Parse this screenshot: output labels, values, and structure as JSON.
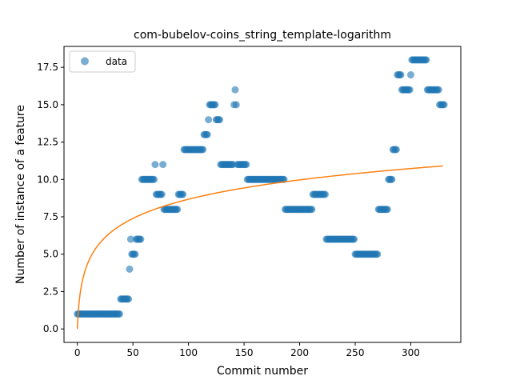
{
  "chart_data": {
    "type": "scatter",
    "title": "com-bubelov-coins_string_template-logarithm",
    "xlabel": "Commit number",
    "ylabel": "Number of instance of a feature",
    "xlim": [
      -12,
      345
    ],
    "ylim": [
      -0.9,
      18.9
    ],
    "xticks": [
      0,
      50,
      100,
      150,
      200,
      250,
      300
    ],
    "yticks": [
      0.0,
      2.5,
      5.0,
      7.5,
      10.0,
      12.5,
      15.0,
      17.5
    ],
    "xtick_labels": [
      "0",
      "50",
      "100",
      "150",
      "200",
      "250",
      "300"
    ],
    "ytick_labels": [
      "0.0",
      "2.5",
      "5.0",
      "7.5",
      "10.0",
      "12.5",
      "15.0",
      "17.5"
    ],
    "grid": false,
    "legend": {
      "position": "top-left",
      "entries": [
        "data"
      ]
    },
    "colors": {
      "data": "#1f77b4",
      "fit": "#ff7f0e"
    },
    "series": [
      {
        "name": "data",
        "points": [
          [
            0,
            1
          ],
          [
            1,
            1
          ],
          [
            2,
            1
          ],
          [
            3,
            1
          ],
          [
            4,
            1
          ],
          [
            5,
            1
          ],
          [
            6,
            1
          ],
          [
            7,
            1
          ],
          [
            8,
            1
          ],
          [
            9,
            1
          ],
          [
            10,
            1
          ],
          [
            11,
            1
          ],
          [
            12,
            1
          ],
          [
            13,
            1
          ],
          [
            14,
            1
          ],
          [
            15,
            1
          ],
          [
            16,
            1
          ],
          [
            17,
            1
          ],
          [
            18,
            1
          ],
          [
            19,
            1
          ],
          [
            20,
            1
          ],
          [
            21,
            1
          ],
          [
            22,
            1
          ],
          [
            23,
            1
          ],
          [
            24,
            1
          ],
          [
            25,
            1
          ],
          [
            26,
            1
          ],
          [
            27,
            1
          ],
          [
            28,
            1
          ],
          [
            29,
            1
          ],
          [
            30,
            1
          ],
          [
            31,
            1
          ],
          [
            32,
            1
          ],
          [
            33,
            1
          ],
          [
            34,
            1
          ],
          [
            35,
            1
          ],
          [
            36,
            1
          ],
          [
            37,
            1
          ],
          [
            38,
            1
          ],
          [
            39,
            2
          ],
          [
            40,
            2
          ],
          [
            41,
            2
          ],
          [
            42,
            2
          ],
          [
            43,
            2
          ],
          [
            44,
            2
          ],
          [
            45,
            2
          ],
          [
            46,
            2
          ],
          [
            47,
            4
          ],
          [
            48,
            6
          ],
          [
            49,
            5
          ],
          [
            50,
            5
          ],
          [
            51,
            5
          ],
          [
            52,
            5
          ],
          [
            53,
            6
          ],
          [
            54,
            6
          ],
          [
            55,
            6
          ],
          [
            56,
            6
          ],
          [
            57,
            6
          ],
          [
            58,
            10
          ],
          [
            59,
            10
          ],
          [
            60,
            10
          ],
          [
            61,
            10
          ],
          [
            62,
            10
          ],
          [
            63,
            10
          ],
          [
            64,
            10
          ],
          [
            65,
            10
          ],
          [
            66,
            10
          ],
          [
            67,
            10
          ],
          [
            68,
            10
          ],
          [
            69,
            10
          ],
          [
            70,
            11
          ],
          [
            71,
            9
          ],
          [
            72,
            9
          ],
          [
            73,
            9
          ],
          [
            74,
            9
          ],
          [
            75,
            9
          ],
          [
            76,
            9
          ],
          [
            77,
            11
          ],
          [
            78,
            8
          ],
          [
            79,
            8
          ],
          [
            80,
            8
          ],
          [
            81,
            8
          ],
          [
            82,
            8
          ],
          [
            83,
            8
          ],
          [
            84,
            8
          ],
          [
            85,
            8
          ],
          [
            86,
            8
          ],
          [
            87,
            8
          ],
          [
            88,
            8
          ],
          [
            89,
            8
          ],
          [
            90,
            8
          ],
          [
            91,
            9
          ],
          [
            92,
            9
          ],
          [
            93,
            9
          ],
          [
            94,
            9
          ],
          [
            95,
            9
          ],
          [
            96,
            12
          ],
          [
            97,
            12
          ],
          [
            98,
            12
          ],
          [
            99,
            12
          ],
          [
            100,
            12
          ],
          [
            101,
            12
          ],
          [
            102,
            12
          ],
          [
            103,
            12
          ],
          [
            104,
            12
          ],
          [
            105,
            12
          ],
          [
            106,
            12
          ],
          [
            107,
            12
          ],
          [
            108,
            12
          ],
          [
            109,
            12
          ],
          [
            110,
            12
          ],
          [
            111,
            12
          ],
          [
            112,
            12
          ],
          [
            113,
            12
          ],
          [
            114,
            13
          ],
          [
            115,
            13
          ],
          [
            116,
            13
          ],
          [
            117,
            13
          ],
          [
            118,
            14
          ],
          [
            119,
            15
          ],
          [
            120,
            15
          ],
          [
            121,
            15
          ],
          [
            122,
            15
          ],
          [
            123,
            15
          ],
          [
            124,
            15
          ],
          [
            125,
            14
          ],
          [
            126,
            14
          ],
          [
            127,
            14
          ],
          [
            128,
            14
          ],
          [
            129,
            11
          ],
          [
            130,
            11
          ],
          [
            131,
            11
          ],
          [
            132,
            11
          ],
          [
            133,
            11
          ],
          [
            134,
            11
          ],
          [
            135,
            11
          ],
          [
            136,
            11
          ],
          [
            137,
            11
          ],
          [
            138,
            11
          ],
          [
            139,
            11
          ],
          [
            140,
            11
          ],
          [
            141,
            15
          ],
          [
            142,
            16
          ],
          [
            143,
            15
          ],
          [
            144,
            11
          ],
          [
            145,
            11
          ],
          [
            146,
            11
          ],
          [
            147,
            11
          ],
          [
            148,
            11
          ],
          [
            149,
            11
          ],
          [
            150,
            11
          ],
          [
            151,
            11
          ],
          [
            152,
            11
          ],
          [
            153,
            10
          ],
          [
            154,
            10
          ],
          [
            155,
            10
          ],
          [
            156,
            10
          ],
          [
            157,
            10
          ],
          [
            158,
            10
          ],
          [
            159,
            10
          ],
          [
            160,
            10
          ],
          [
            161,
            10
          ],
          [
            162,
            10
          ],
          [
            163,
            10
          ],
          [
            164,
            10
          ],
          [
            165,
            10
          ],
          [
            166,
            10
          ],
          [
            167,
            10
          ],
          [
            168,
            10
          ],
          [
            169,
            10
          ],
          [
            170,
            10
          ],
          [
            171,
            10
          ],
          [
            172,
            10
          ],
          [
            173,
            10
          ],
          [
            174,
            10
          ],
          [
            175,
            10
          ],
          [
            176,
            10
          ],
          [
            177,
            10
          ],
          [
            178,
            10
          ],
          [
            179,
            10
          ],
          [
            180,
            10
          ],
          [
            181,
            10
          ],
          [
            182,
            10
          ],
          [
            183,
            10
          ],
          [
            184,
            10
          ],
          [
            185,
            10
          ],
          [
            186,
            10
          ],
          [
            187,
            8
          ],
          [
            188,
            8
          ],
          [
            189,
            8
          ],
          [
            190,
            8
          ],
          [
            191,
            8
          ],
          [
            192,
            8
          ],
          [
            193,
            8
          ],
          [
            194,
            8
          ],
          [
            195,
            8
          ],
          [
            196,
            8
          ],
          [
            197,
            8
          ],
          [
            198,
            8
          ],
          [
            199,
            8
          ],
          [
            200,
            8
          ],
          [
            201,
            8
          ],
          [
            202,
            8
          ],
          [
            203,
            8
          ],
          [
            204,
            8
          ],
          [
            205,
            8
          ],
          [
            206,
            8
          ],
          [
            207,
            8
          ],
          [
            208,
            8
          ],
          [
            209,
            8
          ],
          [
            210,
            8
          ],
          [
            211,
            8
          ],
          [
            212,
            9
          ],
          [
            213,
            9
          ],
          [
            214,
            9
          ],
          [
            215,
            9
          ],
          [
            216,
            9
          ],
          [
            217,
            9
          ],
          [
            218,
            9
          ],
          [
            219,
            9
          ],
          [
            220,
            9
          ],
          [
            221,
            9
          ],
          [
            222,
            9
          ],
          [
            223,
            9
          ],
          [
            224,
            6
          ],
          [
            225,
            6
          ],
          [
            226,
            6
          ],
          [
            227,
            6
          ],
          [
            228,
            6
          ],
          [
            229,
            6
          ],
          [
            230,
            6
          ],
          [
            231,
            6
          ],
          [
            232,
            6
          ],
          [
            233,
            6
          ],
          [
            234,
            6
          ],
          [
            235,
            6
          ],
          [
            236,
            6
          ],
          [
            237,
            6
          ],
          [
            238,
            6
          ],
          [
            239,
            6
          ],
          [
            240,
            6
          ],
          [
            241,
            6
          ],
          [
            242,
            6
          ],
          [
            243,
            6
          ],
          [
            244,
            6
          ],
          [
            245,
            6
          ],
          [
            246,
            6
          ],
          [
            247,
            6
          ],
          [
            248,
            6
          ],
          [
            249,
            6
          ],
          [
            250,
            5
          ],
          [
            251,
            5
          ],
          [
            252,
            5
          ],
          [
            253,
            5
          ],
          [
            254,
            5
          ],
          [
            255,
            5
          ],
          [
            256,
            5
          ],
          [
            257,
            5
          ],
          [
            258,
            5
          ],
          [
            259,
            5
          ],
          [
            260,
            5
          ],
          [
            261,
            5
          ],
          [
            262,
            5
          ],
          [
            263,
            5
          ],
          [
            264,
            5
          ],
          [
            265,
            5
          ],
          [
            266,
            5
          ],
          [
            267,
            5
          ],
          [
            268,
            5
          ],
          [
            269,
            5
          ],
          [
            270,
            5
          ],
          [
            271,
            8
          ],
          [
            272,
            8
          ],
          [
            273,
            8
          ],
          [
            274,
            8
          ],
          [
            275,
            8
          ],
          [
            276,
            8
          ],
          [
            277,
            8
          ],
          [
            278,
            8
          ],
          [
            279,
            8
          ],
          [
            280,
            10
          ],
          [
            281,
            10
          ],
          [
            282,
            10
          ],
          [
            283,
            10
          ],
          [
            284,
            12
          ],
          [
            285,
            12
          ],
          [
            286,
            12
          ],
          [
            287,
            12
          ],
          [
            288,
            17
          ],
          [
            289,
            17
          ],
          [
            290,
            17
          ],
          [
            291,
            17
          ],
          [
            292,
            16
          ],
          [
            293,
            16
          ],
          [
            294,
            16
          ],
          [
            295,
            16
          ],
          [
            296,
            16
          ],
          [
            297,
            16
          ],
          [
            298,
            16
          ],
          [
            299,
            16
          ],
          [
            300,
            17
          ],
          [
            301,
            18
          ],
          [
            302,
            18
          ],
          [
            303,
            18
          ],
          [
            304,
            18
          ],
          [
            305,
            18
          ],
          [
            306,
            18
          ],
          [
            307,
            18
          ],
          [
            308,
            18
          ],
          [
            309,
            18
          ],
          [
            310,
            18
          ],
          [
            311,
            18
          ],
          [
            312,
            18
          ],
          [
            313,
            18
          ],
          [
            314,
            18
          ],
          [
            315,
            16
          ],
          [
            316,
            16
          ],
          [
            317,
            16
          ],
          [
            318,
            16
          ],
          [
            319,
            16
          ],
          [
            320,
            16
          ],
          [
            321,
            16
          ],
          [
            322,
            16
          ],
          [
            323,
            16
          ],
          [
            324,
            16
          ],
          [
            325,
            16
          ],
          [
            326,
            15
          ],
          [
            327,
            15
          ],
          [
            328,
            15
          ],
          [
            329,
            15
          ],
          [
            330,
            15
          ]
        ]
      },
      {
        "name": "",
        "type": "line",
        "fit": "logarithmic",
        "a": 1.88,
        "b": 0.0,
        "x_range": [
          0,
          329
        ]
      }
    ]
  }
}
